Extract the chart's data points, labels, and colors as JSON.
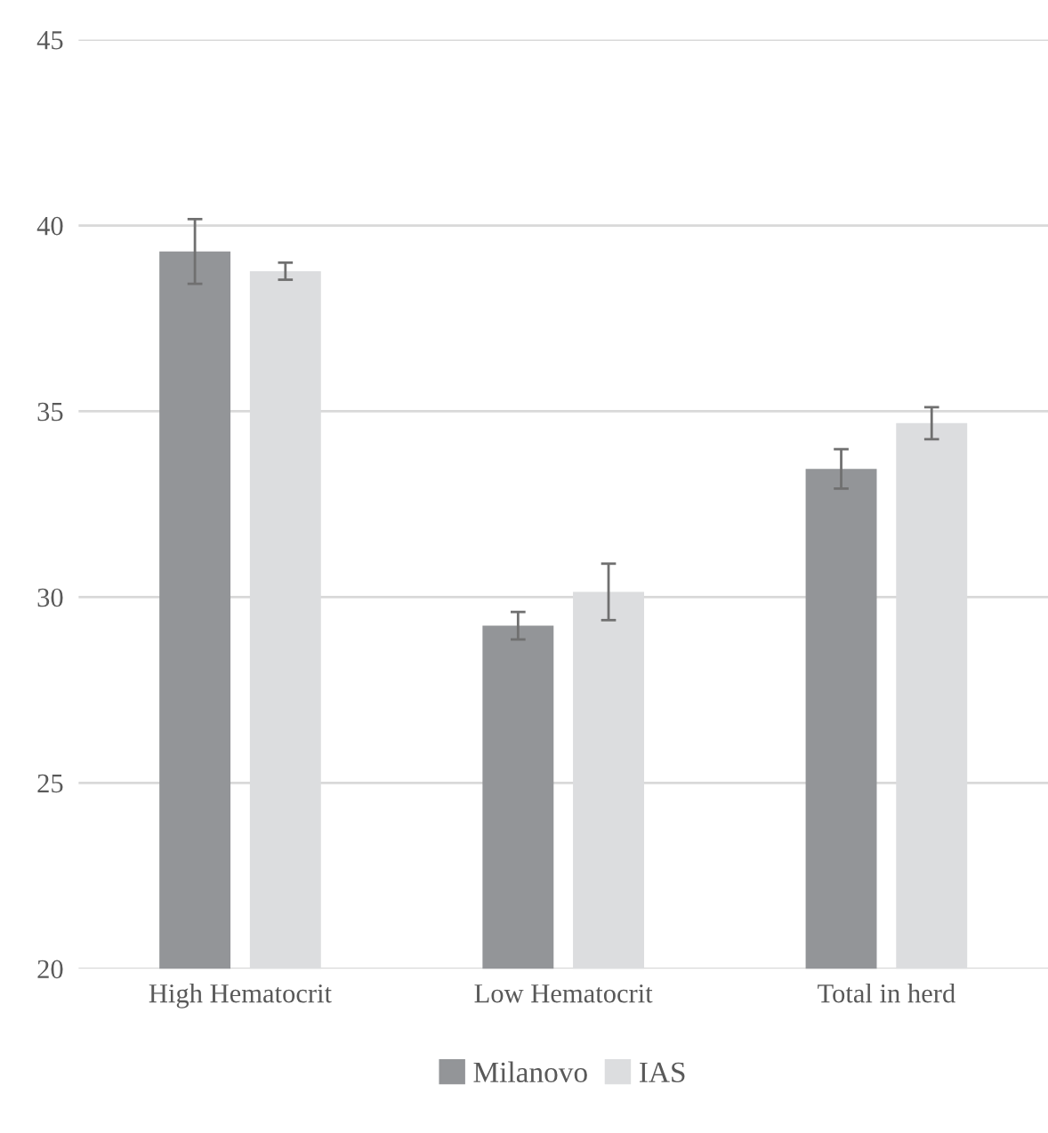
{
  "chart_data": {
    "type": "bar",
    "categories": [
      "High Hematocrit",
      "Low Hematocrit",
      "Total in herd"
    ],
    "series": [
      {
        "name": "Milanovo",
        "color": "#939598",
        "values": [
          39.3,
          29.23,
          33.45
        ],
        "errors": [
          0.87,
          0.37,
          0.53
        ]
      },
      {
        "name": "IAS",
        "color": "#dcdddf",
        "values": [
          38.77,
          30.14,
          34.68
        ],
        "errors": [
          0.23,
          0.76,
          0.43
        ]
      }
    ],
    "ylim": [
      20,
      45
    ],
    "yticks": [
      20,
      25,
      30,
      35,
      40,
      45
    ],
    "grid": "y",
    "legend": "bottom"
  }
}
